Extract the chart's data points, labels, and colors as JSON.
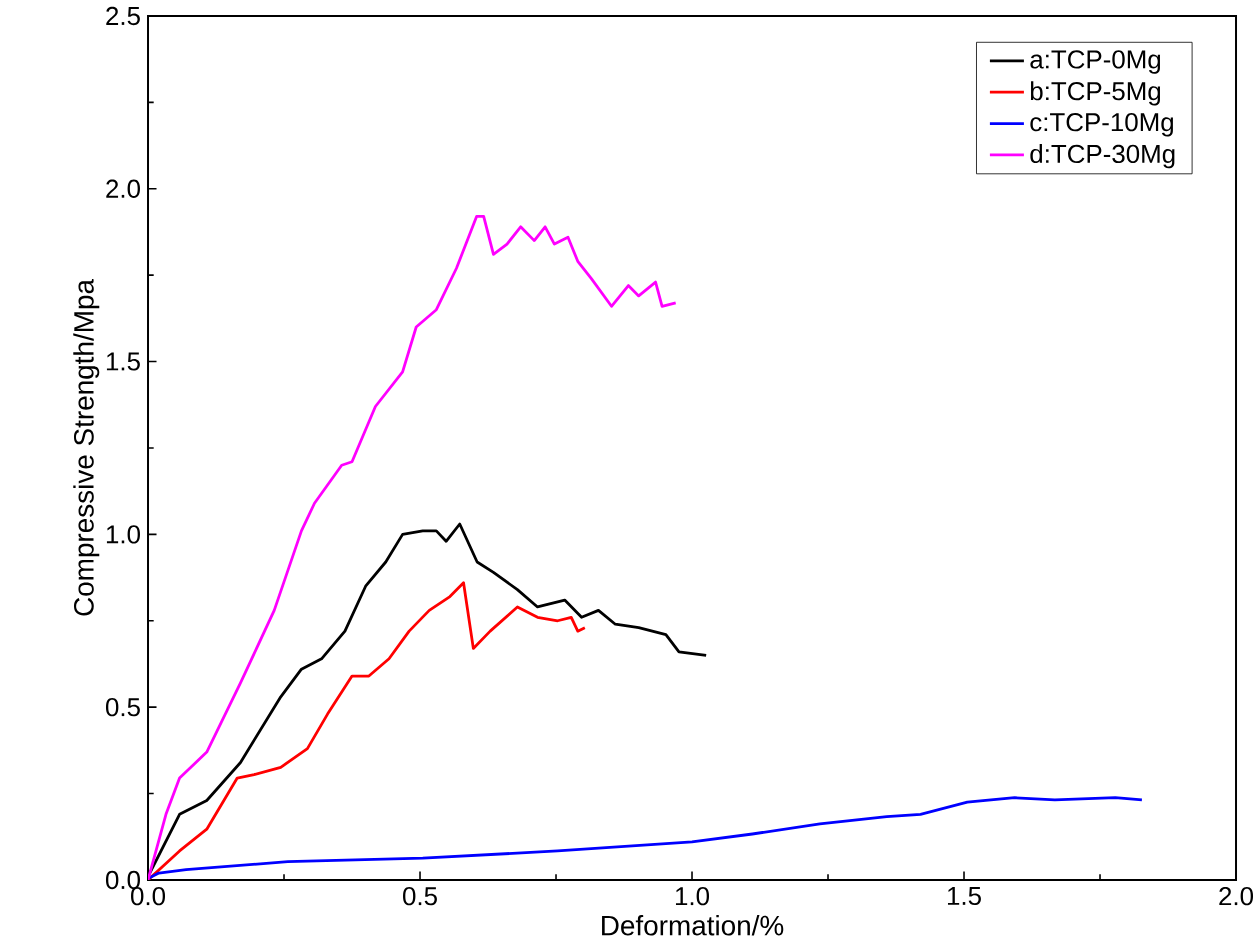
{
  "chart_data": {
    "type": "line",
    "xlabel": "Deformation/%",
    "ylabel": "Compressive Strength/Mpa",
    "xlim": [
      0,
      2.0
    ],
    "ylim": [
      0,
      2.5
    ],
    "xticks": [
      {
        "value": 0,
        "label": "0.0"
      },
      {
        "value": 0.5,
        "label": "0.5"
      },
      {
        "value": 1.0,
        "label": "1.0"
      },
      {
        "value": 1.5,
        "label": "1.5"
      },
      {
        "value": 2.0,
        "label": "2.0"
      }
    ],
    "yticks": [
      {
        "value": 0,
        "label": "0.0"
      },
      {
        "value": 0.5,
        "label": "0.5"
      },
      {
        "value": 1.0,
        "label": "1.0"
      },
      {
        "value": 1.5,
        "label": "1.5"
      },
      {
        "value": 2.0,
        "label": "2.0"
      },
      {
        "value": 2.5,
        "label": "2.5"
      }
    ],
    "legend": "top right",
    "marker": "none",
    "line_style": "solid",
    "grid": false,
    "series": [
      {
        "name": "a:TCP-0Mg",
        "color": "#000000",
        "x": [
          0,
          0.058,
          0.108,
          0.17,
          0.244,
          0.282,
          0.319,
          0.362,
          0.4,
          0.437,
          0.468,
          0.505,
          0.53,
          0.548,
          0.573,
          0.605,
          0.635,
          0.679,
          0.716,
          0.766,
          0.797,
          0.828,
          0.859,
          0.902,
          0.952,
          0.976,
          1.026
        ],
        "values": [
          0.01,
          0.19,
          0.23,
          0.34,
          0.53,
          0.61,
          0.64,
          0.72,
          0.85,
          0.92,
          1.0,
          1.01,
          1.01,
          0.98,
          1.03,
          0.92,
          0.89,
          0.84,
          0.79,
          0.81,
          0.76,
          0.78,
          0.74,
          0.73,
          0.71,
          0.66,
          0.65
        ]
      },
      {
        "name": "b:TCP-5Mg",
        "color": "#ff0000",
        "x": [
          0,
          0.058,
          0.108,
          0.164,
          0.195,
          0.244,
          0.293,
          0.33,
          0.375,
          0.406,
          0.443,
          0.48,
          0.517,
          0.555,
          0.58,
          0.598,
          0.629,
          0.679,
          0.716,
          0.753,
          0.778,
          0.79,
          0.803
        ],
        "values": [
          0,
          0.084,
          0.147,
          0.295,
          0.305,
          0.326,
          0.38,
          0.48,
          0.59,
          0.59,
          0.64,
          0.72,
          0.78,
          0.82,
          0.86,
          0.67,
          0.72,
          0.79,
          0.76,
          0.75,
          0.76,
          0.72,
          0.73
        ]
      },
      {
        "name": "c:TCP-10Mg",
        "color": "#0000ff",
        "x": [
          0,
          0.02,
          0.07,
          0.257,
          0.505,
          0.753,
          1.0,
          1.111,
          1.235,
          1.358,
          1.42,
          1.506,
          1.593,
          1.667,
          1.778,
          1.827
        ],
        "values": [
          0.004,
          0.02,
          0.03,
          0.053,
          0.063,
          0.084,
          0.11,
          0.133,
          0.162,
          0.183,
          0.19,
          0.225,
          0.238,
          0.232,
          0.238,
          0.232
        ]
      },
      {
        "name": "d:TCP-30Mg",
        "color": "#ff00ff",
        "x": [
          0,
          0.033,
          0.058,
          0.108,
          0.17,
          0.232,
          0.282,
          0.306,
          0.356,
          0.375,
          0.418,
          0.468,
          0.493,
          0.53,
          0.567,
          0.604,
          0.617,
          0.635,
          0.66,
          0.685,
          0.71,
          0.73,
          0.747,
          0.772,
          0.79,
          0.815,
          0.852,
          0.883,
          0.902,
          0.933,
          0.945,
          0.97
        ],
        "values": [
          0,
          0.19,
          0.295,
          0.37,
          0.57,
          0.78,
          1.01,
          1.09,
          1.2,
          1.21,
          1.37,
          1.47,
          1.6,
          1.65,
          1.77,
          1.92,
          1.92,
          1.81,
          1.84,
          1.89,
          1.85,
          1.89,
          1.84,
          1.86,
          1.79,
          1.74,
          1.66,
          1.72,
          1.69,
          1.73,
          1.66,
          1.67
        ]
      }
    ]
  }
}
